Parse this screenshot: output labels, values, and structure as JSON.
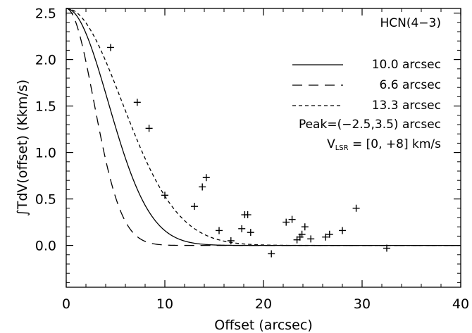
{
  "chart_data": {
    "type": "scatter",
    "title": "",
    "xlabel": "Offset (arcsec)",
    "ylabel": "∫TdV(offset) (Kkm/s)",
    "xlim": [
      0,
      40
    ],
    "ylim": [
      -0.45,
      2.55
    ],
    "grid": false,
    "x_ticks": [
      "0",
      "10",
      "20",
      "30",
      "40"
    ],
    "y_ticks": [
      "0.0",
      "0.5",
      "1.0",
      "1.5",
      "2.0",
      "2.5"
    ],
    "legend_position": "top-right",
    "molecule_label": "HCN(4−3)",
    "legend": [
      {
        "name": "10.0 arcsec",
        "style": "solid"
      },
      {
        "name": "6.6 arcsec",
        "style": "long-dash"
      },
      {
        "name": "13.3 arcsec",
        "style": "short-dash"
      }
    ],
    "peak_label": "Peak=(−2.5,3.5) arcsec",
    "vlsr": {
      "main": "V",
      "sub": "LSR",
      "rest": " = [0, +8] km/s"
    },
    "gaussian_peak": 2.55,
    "curves": [
      {
        "name": "10.0 arcsec",
        "style": "solid",
        "hpbw": 10.0
      },
      {
        "name": "6.6 arcsec",
        "style": "long-dash",
        "hpbw": 6.6
      },
      {
        "name": "13.3 arcsec",
        "style": "short-dash",
        "hpbw": 13.3
      }
    ],
    "points": [
      {
        "x": 4.5,
        "y": 2.13
      },
      {
        "x": 7.2,
        "y": 1.54
      },
      {
        "x": 8.4,
        "y": 1.26
      },
      {
        "x": 10.0,
        "y": 0.54
      },
      {
        "x": 13.0,
        "y": 0.42
      },
      {
        "x": 13.8,
        "y": 0.63
      },
      {
        "x": 14.2,
        "y": 0.73
      },
      {
        "x": 15.5,
        "y": 0.16
      },
      {
        "x": 16.7,
        "y": 0.05
      },
      {
        "x": 17.8,
        "y": 0.18
      },
      {
        "x": 18.1,
        "y": 0.33
      },
      {
        "x": 18.4,
        "y": 0.33
      },
      {
        "x": 18.7,
        "y": 0.14
      },
      {
        "x": 20.8,
        "y": -0.09
      },
      {
        "x": 22.3,
        "y": 0.25
      },
      {
        "x": 22.9,
        "y": 0.28
      },
      {
        "x": 23.4,
        "y": 0.06
      },
      {
        "x": 23.7,
        "y": 0.09
      },
      {
        "x": 23.9,
        "y": 0.12
      },
      {
        "x": 24.2,
        "y": 0.2
      },
      {
        "x": 24.8,
        "y": 0.07
      },
      {
        "x": 26.3,
        "y": 0.09
      },
      {
        "x": 26.7,
        "y": 0.12
      },
      {
        "x": 28.0,
        "y": 0.16
      },
      {
        "x": 29.4,
        "y": 0.4
      },
      {
        "x": 32.5,
        "y": -0.03
      }
    ]
  }
}
